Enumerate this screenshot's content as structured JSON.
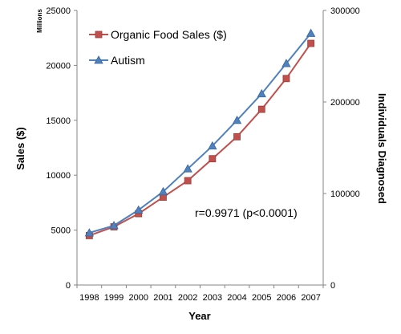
{
  "chart_data": {
    "type": "line",
    "x": [
      "1998",
      "1999",
      "2000",
      "2001",
      "2002",
      "2003",
      "2004",
      "2005",
      "2006",
      "2007"
    ],
    "xlabel": "Year",
    "ylabel": "Sales ($)",
    "ylabel_unit": "Millions",
    "ylim": [
      0,
      25000
    ],
    "yticks": [
      "0",
      "5000",
      "10000",
      "15000",
      "20000",
      "25000"
    ],
    "y2label": "Individuals Diagnosed",
    "y2lim": [
      0,
      300000
    ],
    "y2ticks": [
      "0",
      "100000",
      "200000",
      "300000"
    ],
    "grid": false,
    "legend_position": "top-left",
    "annotation": "r=0.9971 (p<0.0001)",
    "series": [
      {
        "name": "Organic Food Sales ($)",
        "axis": "left",
        "color": "#c0504d",
        "marker": "square",
        "values": [
          4500,
          5300,
          6500,
          8000,
          9500,
          11500,
          13500,
          16000,
          18800,
          22000
        ]
      },
      {
        "name": "Autism",
        "axis": "right",
        "color": "#4f81bd",
        "marker": "triangle",
        "values": [
          57000,
          65000,
          82000,
          102000,
          127000,
          152000,
          180000,
          209000,
          242000,
          275000
        ]
      }
    ]
  }
}
